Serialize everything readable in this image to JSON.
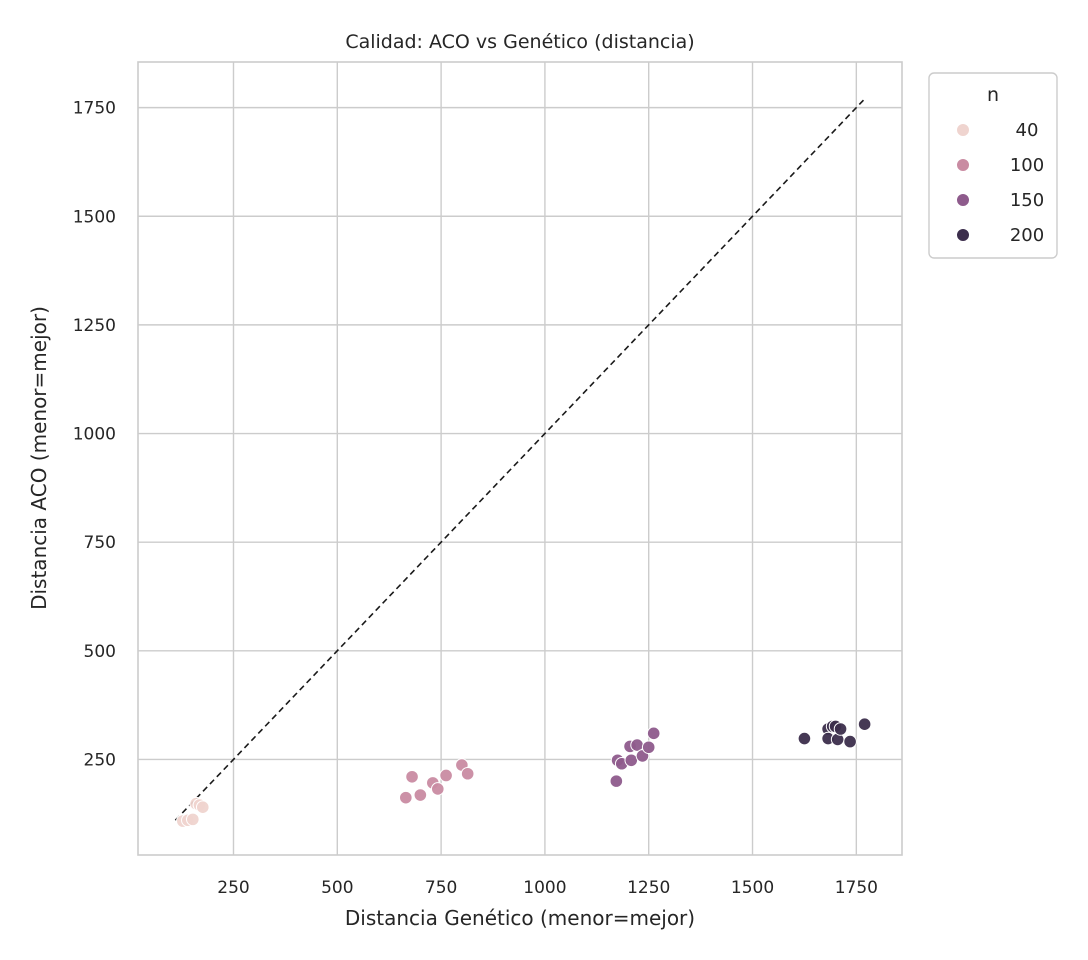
{
  "chart_data": {
    "type": "scatter",
    "title": "Calidad: ACO vs Genético (distancia)",
    "xlabel": "Distancia Genético (menor=mejor)",
    "ylabel": "Distancia ACO (menor=mejor)",
    "xlim": [
      20,
      1860
    ],
    "ylim": [
      30,
      1855
    ],
    "xticks": [
      250,
      500,
      750,
      1000,
      1250,
      1500,
      1750
    ],
    "yticks": [
      250,
      500,
      750,
      1000,
      1250,
      1500,
      1750
    ],
    "grid": true,
    "reference_line": {
      "style": "dashed",
      "color": "#1a1a1a",
      "from": [
        110,
        110
      ],
      "to": [
        1770,
        1770
      ]
    },
    "legend": {
      "title": "n",
      "placement": "outside-top-right",
      "entries": [
        {
          "label": "40",
          "color": "#efd4cf"
        },
        {
          "label": "100",
          "color": "#c98ba2"
        },
        {
          "label": "150",
          "color": "#8e5b8c"
        },
        {
          "label": "200",
          "color": "#3c2e4c"
        }
      ]
    },
    "series": [
      {
        "n": 40,
        "color": "#efd4cf",
        "points": [
          [
            128,
            108
          ],
          [
            140,
            110
          ],
          [
            152,
            112
          ],
          [
            160,
            148
          ],
          [
            168,
            145
          ],
          [
            176,
            140
          ]
        ]
      },
      {
        "n": 100,
        "color": "#c98ba2",
        "points": [
          [
            665,
            162
          ],
          [
            680,
            210
          ],
          [
            700,
            168
          ],
          [
            730,
            196
          ],
          [
            742,
            182
          ],
          [
            762,
            213
          ],
          [
            800,
            237
          ],
          [
            814,
            217
          ]
        ]
      },
      {
        "n": 150,
        "color": "#8e5b8c",
        "points": [
          [
            1172,
            200
          ],
          [
            1175,
            248
          ],
          [
            1185,
            240
          ],
          [
            1205,
            280
          ],
          [
            1208,
            248
          ],
          [
            1222,
            283
          ],
          [
            1235,
            258
          ],
          [
            1250,
            278
          ],
          [
            1262,
            310
          ]
        ]
      },
      {
        "n": 200,
        "color": "#3c2e4c",
        "points": [
          [
            1625,
            298
          ],
          [
            1682,
            320
          ],
          [
            1682,
            298
          ],
          [
            1693,
            326
          ],
          [
            1700,
            326
          ],
          [
            1705,
            296
          ],
          [
            1712,
            320
          ],
          [
            1735,
            291
          ],
          [
            1770,
            331
          ]
        ]
      }
    ]
  }
}
